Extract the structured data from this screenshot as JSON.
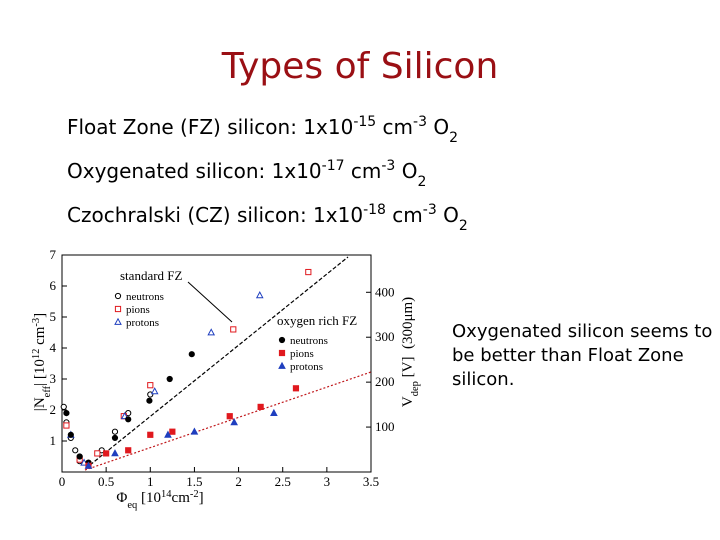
{
  "title": "Types of Silicon",
  "bullets": [
    [
      {
        "text": "Float Zone (FZ) silicon: 1x10"
      },
      {
        "text": "-15",
        "script": "super"
      },
      {
        "text": " cm"
      },
      {
        "text": "-3",
        "script": "super"
      },
      {
        "text": " O"
      },
      {
        "text": "2",
        "script": "sub"
      }
    ],
    [
      {
        "text": "Oxygenated silicon: 1x10"
      },
      {
        "text": "-17",
        "script": "super"
      },
      {
        "text": " cm"
      },
      {
        "text": "-3",
        "script": "super"
      },
      {
        "text": " O"
      },
      {
        "text": "2",
        "script": "sub"
      }
    ],
    [
      {
        "text": "Czochralski (CZ) silicon: 1x10"
      },
      {
        "text": "-18",
        "script": "super"
      },
      {
        "text": " cm"
      },
      {
        "text": "-3",
        "script": "super"
      },
      {
        "text": " O"
      },
      {
        "text": "2",
        "script": "sub"
      }
    ]
  ],
  "note": "Oxygenated silicon seems to be better than Float Zone silicon.",
  "chart_data": {
    "type": "scatter",
    "xlabel": [
      {
        "text": "Φ"
      },
      {
        "text": "eq",
        "script": "sub"
      },
      {
        "text": " [10"
      },
      {
        "text": "14",
        "script": "super"
      },
      {
        "text": "cm"
      },
      {
        "text": "-2",
        "script": "super"
      },
      {
        "text": "]"
      }
    ],
    "ylabel": [
      {
        "text": "|N"
      },
      {
        "text": "eff",
        "script": "sub"
      },
      {
        "text": "| [10"
      },
      {
        "text": "12",
        "script": "super"
      },
      {
        "text": " cm"
      },
      {
        "text": "-3",
        "script": "super"
      },
      {
        "text": "]"
      }
    ],
    "y2label": [
      {
        "text": "V"
      },
      {
        "text": "dep",
        "script": "sub"
      },
      {
        "text": " [V]  (300μm)"
      }
    ],
    "xlim": [
      0,
      3.5
    ],
    "xticks": [
      0,
      0.5,
      1,
      1.5,
      2,
      2.5,
      3,
      3.5
    ],
    "ylim": [
      0,
      7
    ],
    "yticks": [
      1,
      2,
      3,
      4,
      5,
      6,
      7
    ],
    "y2lim": [
      0,
      483
    ],
    "y2ticks": [
      100,
      200,
      300,
      400
    ],
    "groups": [
      {
        "name": "standard FZ",
        "series": [
          {
            "name": "neutrons",
            "color": "#000000",
            "marker": "circle",
            "filled": false,
            "x": [
              0.02,
              0.05,
              0.1,
              0.15,
              0.2,
              0.3,
              0.45,
              0.6,
              0.75,
              1.0
            ],
            "values": [
              2.1,
              1.6,
              1.1,
              0.7,
              0.35,
              0.3,
              0.7,
              1.3,
              1.9,
              2.5
            ]
          },
          {
            "name": "pions",
            "color": "#e0191e",
            "marker": "square",
            "filled": false,
            "x": [
              0.05,
              0.2,
              0.4,
              0.7,
              1.0,
              1.94,
              2.79
            ],
            "values": [
              1.5,
              0.4,
              0.6,
              1.8,
              2.8,
              4.6,
              6.45
            ]
          },
          {
            "name": "protons",
            "color": "#1f3fbf",
            "marker": "triangle",
            "filled": false,
            "x": [
              0.1,
              0.25,
              0.71,
              1.05,
              1.69,
              2.24
            ],
            "values": [
              1.2,
              0.3,
              1.8,
              2.6,
              4.5,
              5.7
            ]
          }
        ]
      },
      {
        "name": "oxygen rich FZ",
        "series": [
          {
            "name": "neutrons",
            "color": "#000000",
            "marker": "circle",
            "filled": true,
            "x": [
              0.05,
              0.1,
              0.2,
              0.3,
              0.6,
              0.75,
              0.99,
              1.22,
              1.47
            ],
            "values": [
              1.9,
              1.2,
              0.5,
              0.3,
              1.1,
              1.7,
              2.3,
              3.0,
              3.8
            ]
          },
          {
            "name": "pions",
            "color": "#e0191e",
            "marker": "square",
            "filled": true,
            "x": [
              0.3,
              0.5,
              0.75,
              1.0,
              1.25,
              1.9,
              2.25,
              2.65
            ],
            "values": [
              0.2,
              0.6,
              0.7,
              1.2,
              1.3,
              1.8,
              2.1,
              2.7
            ]
          },
          {
            "name": "protons",
            "color": "#1f3fbf",
            "marker": "triangle",
            "filled": true,
            "x": [
              0.3,
              0.6,
              1.2,
              1.5,
              1.95,
              2.4
            ],
            "values": [
              0.2,
              0.6,
              1.2,
              1.3,
              1.6,
              1.9
            ]
          }
        ]
      }
    ]
  }
}
